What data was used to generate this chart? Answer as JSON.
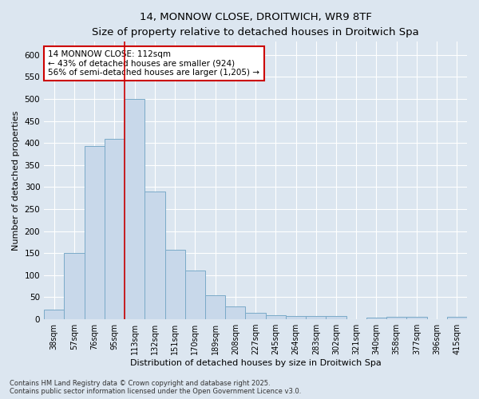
{
  "title_line1": "14, MONNOW CLOSE, DROITWICH, WR9 8TF",
  "title_line2": "Size of property relative to detached houses in Droitwich Spa",
  "xlabel": "Distribution of detached houses by size in Droitwich Spa",
  "ylabel": "Number of detached properties",
  "bar_color": "#c8d8ea",
  "bar_edge_color": "#7aaac8",
  "background_color": "#dce6f0",
  "grid_color": "#ffffff",
  "categories": [
    "38sqm",
    "57sqm",
    "76sqm",
    "95sqm",
    "113sqm",
    "132sqm",
    "151sqm",
    "170sqm",
    "189sqm",
    "208sqm",
    "227sqm",
    "245sqm",
    "264sqm",
    "283sqm",
    "302sqm",
    "321sqm",
    "340sqm",
    "358sqm",
    "377sqm",
    "396sqm",
    "415sqm"
  ],
  "values": [
    22,
    150,
    393,
    410,
    500,
    290,
    158,
    110,
    55,
    29,
    15,
    10,
    7,
    7,
    7,
    0,
    3,
    5,
    5,
    0,
    5
  ],
  "vline_x_index": 4,
  "vline_color": "#cc0000",
  "annotation_text": "14 MONNOW CLOSE: 112sqm\n← 43% of detached houses are smaller (924)\n56% of semi-detached houses are larger (1,205) →",
  "annotation_box_color": "#ffffff",
  "annotation_box_edge": "#cc0000",
  "footer_text": "Contains HM Land Registry data © Crown copyright and database right 2025.\nContains public sector information licensed under the Open Government Licence v3.0.",
  "ylim": [
    0,
    630
  ],
  "yticks": [
    0,
    50,
    100,
    150,
    200,
    250,
    300,
    350,
    400,
    450,
    500,
    550,
    600
  ]
}
